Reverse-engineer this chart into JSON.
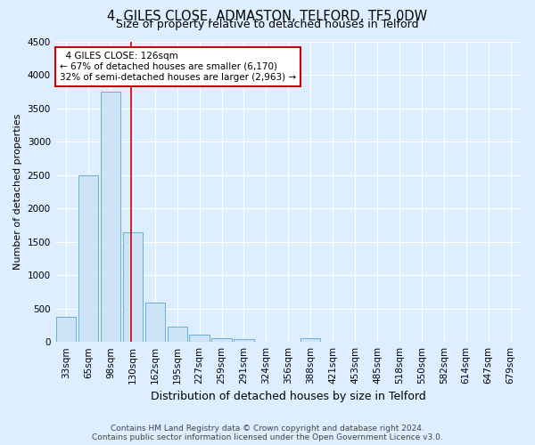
{
  "title_main": "4, GILES CLOSE, ADMASTON, TELFORD, TF5 0DW",
  "title_sub": "Size of property relative to detached houses in Telford",
  "xlabel": "Distribution of detached houses by size in Telford",
  "ylabel": "Number of detached properties",
  "footer_line1": "Contains HM Land Registry data © Crown copyright and database right 2024.",
  "footer_line2": "Contains public sector information licensed under the Open Government Licence v3.0.",
  "bar_labels": [
    "33sqm",
    "65sqm",
    "98sqm",
    "130sqm",
    "162sqm",
    "195sqm",
    "227sqm",
    "259sqm",
    "291sqm",
    "324sqm",
    "356sqm",
    "388sqm",
    "421sqm",
    "453sqm",
    "485sqm",
    "518sqm",
    "550sqm",
    "582sqm",
    "614sqm",
    "647sqm",
    "679sqm"
  ],
  "bar_values": [
    370,
    2500,
    3750,
    1640,
    590,
    225,
    105,
    60,
    45,
    0,
    0,
    60,
    0,
    0,
    0,
    0,
    0,
    0,
    0,
    0,
    0
  ],
  "bar_color": "#cce4f5",
  "bar_edge_color": "#6aaed6",
  "annotation_text": "  4 GILES CLOSE: 126sqm  \n← 67% of detached houses are smaller (6,170)\n32% of semi-detached houses are larger (2,963) →",
  "annotation_box_color": "#ffffff",
  "annotation_box_edge_color": "#cc0000",
  "property_line_color": "#cc0000",
  "property_line_x": 2.93,
  "ylim": [
    0,
    4500
  ],
  "yticks": [
    0,
    500,
    1000,
    1500,
    2000,
    2500,
    3000,
    3500,
    4000,
    4500
  ],
  "bg_color": "#ddeeff",
  "grid_color": "#ffffff",
  "title_main_fontsize": 10.5,
  "title_sub_fontsize": 9,
  "ylabel_fontsize": 8,
  "xlabel_fontsize": 9,
  "tick_fontsize": 7.5,
  "footer_fontsize": 6.5,
  "annot_fontsize": 7.5
}
